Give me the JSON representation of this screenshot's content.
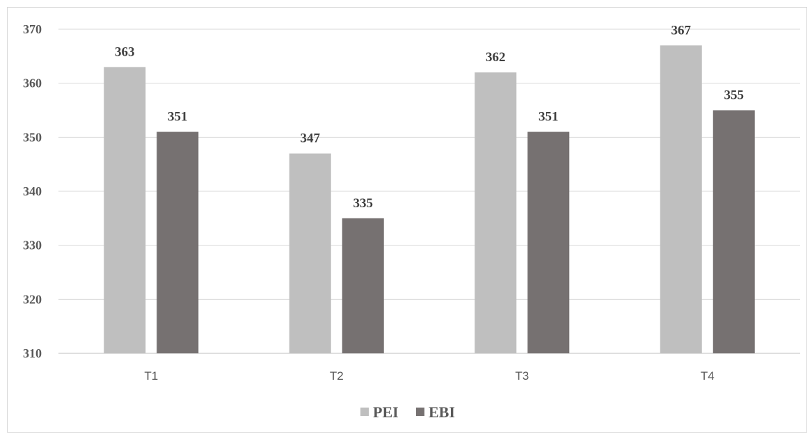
{
  "chart_data": {
    "type": "bar",
    "categories": [
      "T1",
      "T2",
      "T3",
      "T4"
    ],
    "series": [
      {
        "name": "PEI",
        "values": [
          363,
          347,
          362,
          367
        ],
        "color": "#bfbfbf"
      },
      {
        "name": "EBI",
        "values": [
          351,
          335,
          351,
          355
        ],
        "color": "#767171"
      }
    ],
    "ylim": [
      310,
      370
    ],
    "yticks": [
      310,
      320,
      330,
      340,
      350,
      360,
      370
    ],
    "grid": true,
    "legend": "bottom-center",
    "title": "",
    "xlabel": "",
    "ylabel": ""
  }
}
